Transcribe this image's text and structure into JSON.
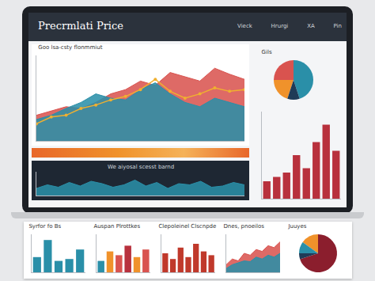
{
  "header": {
    "title": "Precrmlati Price",
    "nav": [
      "Vieck",
      "Hrurgi",
      "XA",
      "Pin"
    ]
  },
  "chart_data": [
    {
      "type": "area",
      "title": "Goo lsa-csty flonmmiut",
      "x": [
        0,
        1,
        2,
        3,
        4,
        5,
        6,
        7,
        8,
        9,
        10,
        11,
        12,
        13,
        14
      ],
      "series": [
        {
          "type": "area",
          "color": "#d9534f",
          "values": [
            30,
            35,
            40,
            38,
            45,
            55,
            60,
            70,
            65,
            80,
            75,
            70,
            85,
            78,
            72
          ]
        },
        {
          "type": "area",
          "color": "#2a8fa8",
          "values": [
            25,
            30,
            38,
            45,
            55,
            50,
            48,
            60,
            68,
            55,
            45,
            40,
            50,
            45,
            40
          ]
        },
        {
          "type": "line",
          "color": "#f0b030",
          "marker": "circle",
          "values": [
            20,
            28,
            30,
            38,
            42,
            48,
            52,
            60,
            72,
            58,
            50,
            55,
            62,
            58,
            60
          ]
        }
      ],
      "xlim": [
        0,
        14
      ],
      "ylim": [
        0,
        100
      ],
      "grid": false,
      "tick_labels": false
    },
    {
      "type": "pie",
      "title": "Gils",
      "values": [
        45,
        25,
        20,
        10
      ],
      "colors": [
        "#2a8fa8",
        "#d9534f",
        "#f0922b",
        "#1f3b57"
      ]
    },
    {
      "type": "bar",
      "x": [
        1,
        2,
        3,
        4,
        5,
        6,
        7,
        8
      ],
      "values": [
        20,
        25,
        30,
        50,
        35,
        65,
        85,
        55
      ],
      "color": "#b8313d",
      "xlim": [
        0.5,
        8.5
      ],
      "ylim": [
        0,
        100
      ],
      "grid": false,
      "tick_labels": false
    },
    {
      "type": "area",
      "annotation": "We aiyosal scesst barnd",
      "x": [
        0,
        1,
        2,
        3,
        4,
        5,
        6,
        7,
        8,
        9,
        10,
        11,
        12,
        13,
        14,
        15,
        16,
        17,
        18,
        19
      ],
      "values": [
        30,
        45,
        35,
        55,
        40,
        60,
        50,
        35,
        45,
        65,
        40,
        55,
        30,
        50,
        45,
        60,
        35,
        40,
        55,
        45
      ],
      "color": "#2a8fa8",
      "xlim": [
        0,
        19
      ],
      "ylim": [
        0,
        100
      ],
      "grid": false,
      "tick_labels": false
    },
    {
      "type": "bar",
      "title": "Syrfor fo Bs",
      "x": [
        1,
        2,
        3,
        4,
        5
      ],
      "values": [
        40,
        85,
        30,
        35,
        60
      ],
      "color": "#2a8fa8",
      "xlim": [
        0.5,
        5.5
      ],
      "ylim": [
        0,
        100
      ],
      "grid": false,
      "tick_labels": false
    },
    {
      "type": "bar",
      "title": "Auspan Plrottkes",
      "x": [
        1,
        2,
        3,
        4,
        5,
        6
      ],
      "values": [
        30,
        55,
        45,
        70,
        40,
        60
      ],
      "colors": [
        "#2a8fa8",
        "#f0922b",
        "#d9534f",
        "#b8313d",
        "#f0922b",
        "#d9534f"
      ],
      "xlim": [
        0.5,
        6.5
      ],
      "ylim": [
        0,
        100
      ],
      "grid": false,
      "tick_labels": false
    },
    {
      "type": "bar",
      "title": "Clepoleinel Clscnpde",
      "x": [
        1,
        2,
        3,
        4,
        5,
        6,
        7
      ],
      "values": [
        50,
        35,
        65,
        40,
        75,
        55,
        45
      ],
      "color": "#c0392b",
      "xlim": [
        0.5,
        7.5
      ],
      "ylim": [
        0,
        100
      ],
      "grid": false,
      "tick_labels": false
    },
    {
      "type": "area",
      "title": "Dnes, pnoeilos",
      "x": [
        0,
        1,
        2,
        3,
        4,
        5,
        6,
        7,
        8,
        9
      ],
      "series": [
        {
          "type": "area",
          "color": "#d9534f",
          "values": [
            20,
            35,
            30,
            50,
            45,
            60,
            55,
            70,
            65,
            80
          ]
        },
        {
          "type": "area",
          "color": "#2a8fa8",
          "values": [
            10,
            20,
            25,
            30,
            28,
            40,
            35,
            45,
            40,
            50
          ]
        }
      ],
      "xlim": [
        0,
        9
      ],
      "ylim": [
        0,
        100
      ],
      "grid": false,
      "tick_labels": false
    },
    {
      "type": "pie",
      "title": "Juuyes",
      "values": [
        70,
        15,
        10,
        5
      ],
      "colors": [
        "#8b1e2d",
        "#f0922b",
        "#2a8fa8",
        "#1f3b57"
      ]
    }
  ]
}
